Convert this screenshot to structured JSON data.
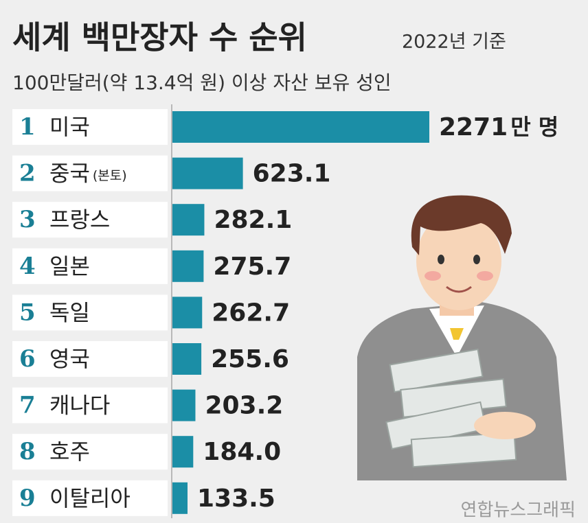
{
  "chart_data": {
    "type": "bar",
    "orientation": "horizontal",
    "title": "세계 백만장자 수 순위",
    "subtitle": "2022년 기준",
    "description": "100만달러(약 13.4억 원) 이상 자산 보유 성인",
    "ranks": [
      1,
      2,
      3,
      4,
      5,
      6,
      7,
      8,
      9
    ],
    "categories": [
      "미국",
      "중국",
      "프랑스",
      "일본",
      "독일",
      "영국",
      "캐나다",
      "호주",
      "이탈리아"
    ],
    "category_note": "(본토)",
    "values": [
      2271,
      623.1,
      282.1,
      275.7,
      262.7,
      255.6,
      203.2,
      184.0,
      133.5
    ],
    "value_labels": [
      "2271",
      "623.1",
      "282.1",
      "275.7",
      "262.7",
      "255.6",
      "203.2",
      "184.0",
      "133.5"
    ],
    "unit": "만 명",
    "color": "#1b8ea6",
    "source": "연합뉴스그래픽"
  }
}
